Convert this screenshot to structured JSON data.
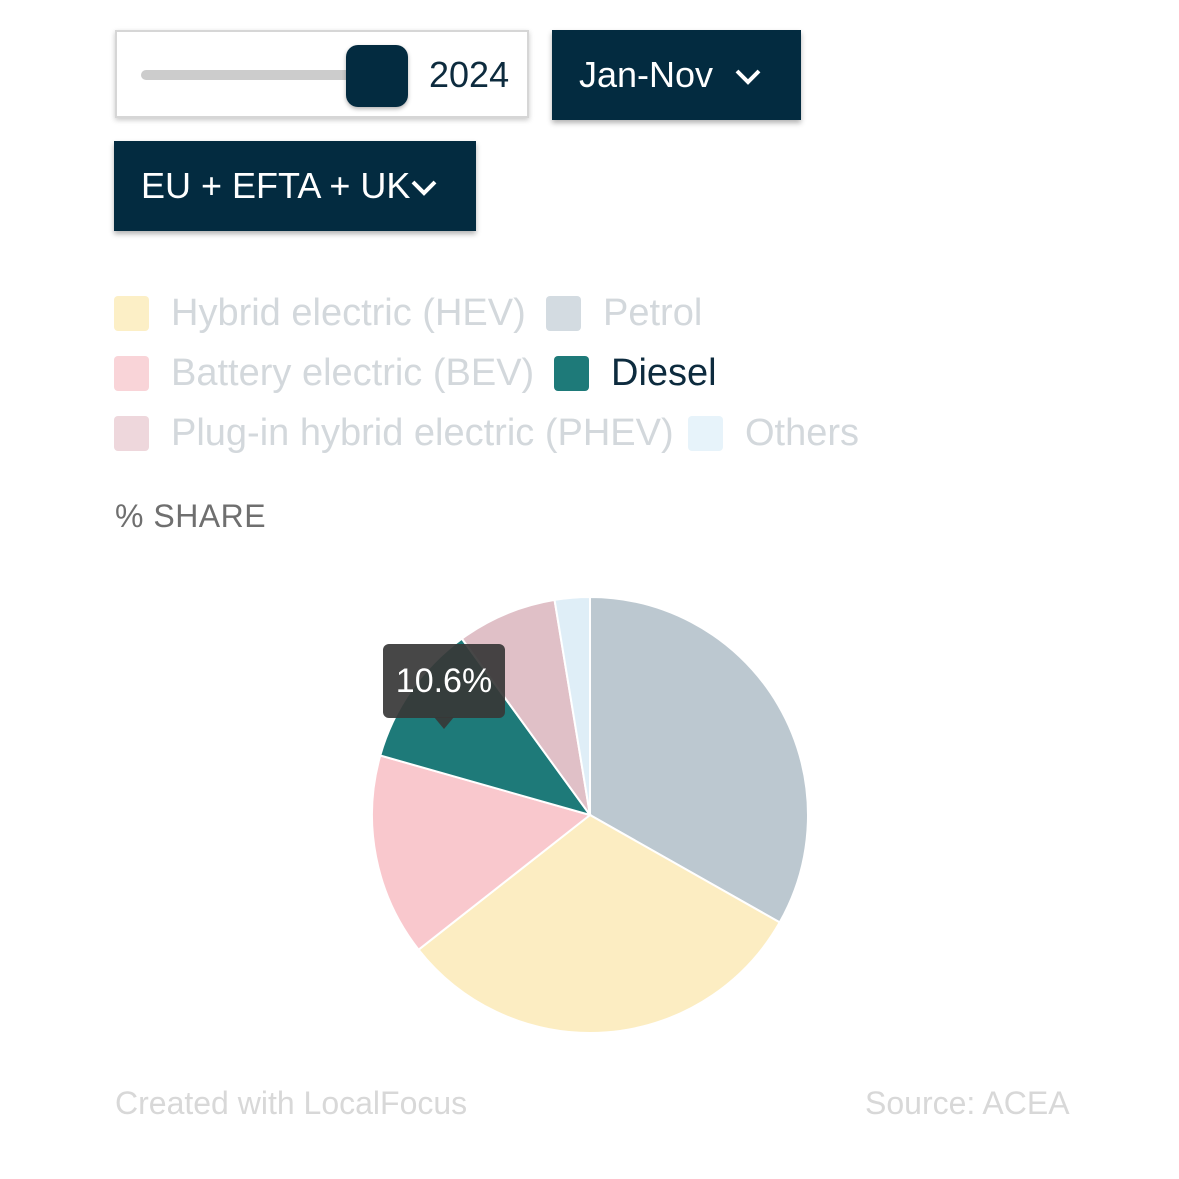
{
  "controls": {
    "year_slider": {
      "value": "2024",
      "position": 0.91
    },
    "period_dropdown": {
      "label": "Jan-Nov"
    },
    "region_dropdown": {
      "label": "EU + EFTA + UK"
    }
  },
  "chart_data": {
    "type": "pie",
    "ylabel": "% SHARE",
    "legend": [
      {
        "name": "Hybrid electric (HEV)",
        "color": "#fcefc6",
        "state": "inactive"
      },
      {
        "name": "Petrol",
        "color": "#d3dbe1",
        "state": "inactive"
      },
      {
        "name": "Battery electric (BEV)",
        "color": "#f9d4d8",
        "state": "inactive"
      },
      {
        "name": "Diesel",
        "color": "#1e7a79",
        "state": "active"
      },
      {
        "name": "Plug-in hybrid electric (PHEV)",
        "color": "#eed7dc",
        "state": "inactive"
      },
      {
        "name": "Others",
        "color": "#e7f3fa",
        "state": "inactive"
      }
    ],
    "slices": [
      {
        "name": "Petrol",
        "value": 33.2,
        "color": "#bcc8d0"
      },
      {
        "name": "Hybrid electric (HEV)",
        "value": 31.2,
        "color": "#fcedc2"
      },
      {
        "name": "Battery electric (BEV)",
        "value": 15.0,
        "color": "#f9c8cd"
      },
      {
        "name": "Diesel",
        "value": 10.6,
        "color": "#1e7a79"
      },
      {
        "name": "Plug-in hybrid electric (PHEV)",
        "value": 7.4,
        "color": "#e0c0c7"
      },
      {
        "name": "Others",
        "value": 2.6,
        "color": "#dfeef7"
      }
    ],
    "tooltip": {
      "series": "Diesel",
      "text": "10.6%"
    }
  },
  "footer": {
    "credit": "Created with LocalFocus",
    "source": "Source:  ACEA"
  }
}
